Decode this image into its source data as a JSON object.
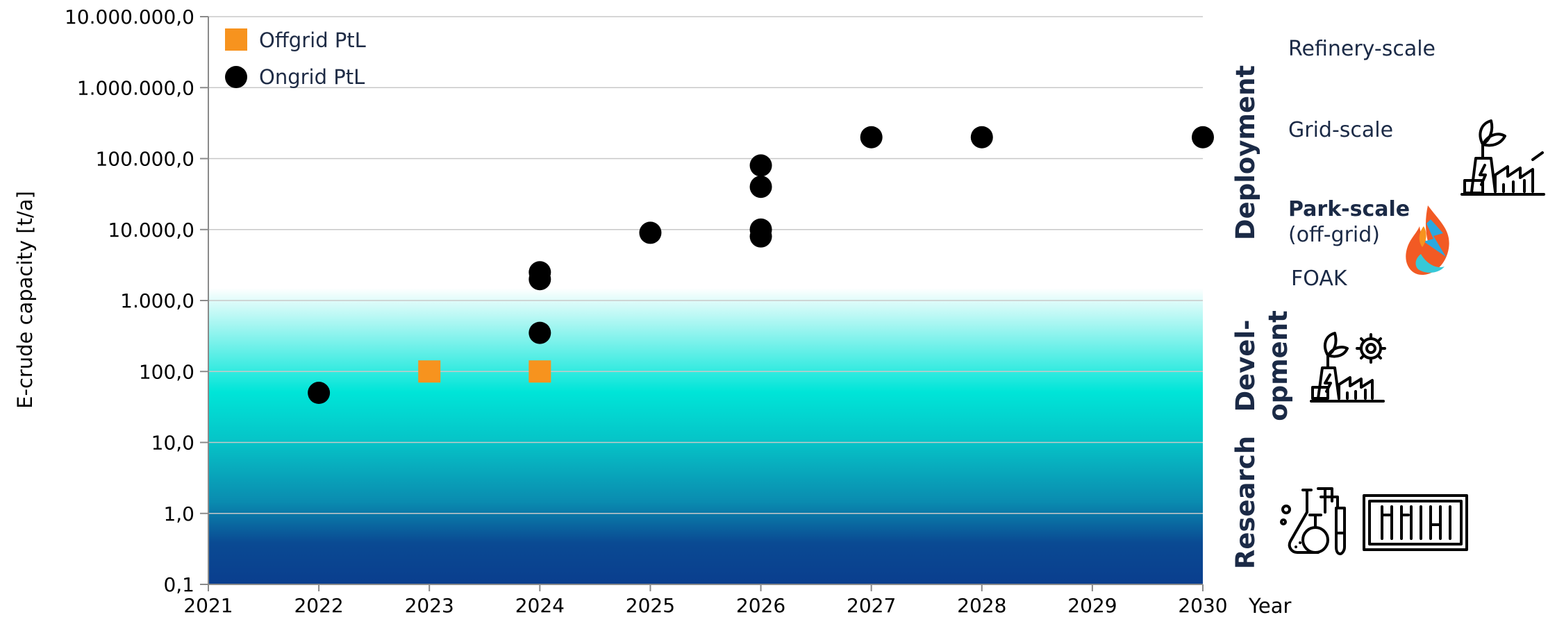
{
  "chart_data": {
    "type": "scatter",
    "xlabel": "Year",
    "ylabel": "E-crude capacity [t/a]",
    "yscale": "log",
    "xlim": [
      2021,
      2030
    ],
    "ylim": [
      0.1,
      10000000
    ],
    "x_ticks": [
      "2021",
      "2022",
      "2023",
      "2024",
      "2025",
      "2026",
      "2027",
      "2028",
      "2029",
      "2030"
    ],
    "y_ticks": [
      {
        "value": 0.1,
        "label": "0,1"
      },
      {
        "value": 1,
        "label": "1,0"
      },
      {
        "value": 10,
        "label": "10,0"
      },
      {
        "value": 100,
        "label": "100,0"
      },
      {
        "value": 1000,
        "label": "1.000,0"
      },
      {
        "value": 10000,
        "label": "10.000,0"
      },
      {
        "value": 100000,
        "label": "100.000,0"
      },
      {
        "value": 1000000,
        "label": "1.000.000,0"
      },
      {
        "value": 10000000,
        "label": "10.000.000,0"
      }
    ],
    "grid": "horizontal",
    "legend": "top-left",
    "series": [
      {
        "name": "Offgrid PtL",
        "marker": "square",
        "color": "#f7931e",
        "points": [
          {
            "x": 2023,
            "y": 100
          },
          {
            "x": 2024,
            "y": 100
          }
        ]
      },
      {
        "name": "Ongrid PtL",
        "marker": "circle",
        "color": "#000000",
        "points": [
          {
            "x": 2022,
            "y": 50
          },
          {
            "x": 2024,
            "y": 350
          },
          {
            "x": 2024,
            "y": 2000
          },
          {
            "x": 2024,
            "y": 2500
          },
          {
            "x": 2025,
            "y": 9000
          },
          {
            "x": 2026,
            "y": 8000
          },
          {
            "x": 2026,
            "y": 10000
          },
          {
            "x": 2026,
            "y": 40000
          },
          {
            "x": 2026,
            "y": 80000
          },
          {
            "x": 2027,
            "y": 200000
          },
          {
            "x": 2028,
            "y": 200000
          },
          {
            "x": 2030,
            "y": 200000
          }
        ]
      }
    ],
    "background_band": {
      "from": 0.1,
      "to": 1000
    },
    "stages": [
      "Deployment",
      "Devel-",
      "opment",
      "Research"
    ],
    "scale_labels": {
      "refinery": "Refinery-scale",
      "grid": "Grid-scale",
      "park": "Park-scale",
      "park_note": "(off-grid)",
      "foak": "FOAK"
    }
  },
  "colors": {
    "band_top": "#ffffff",
    "band_cyan": "#00e5d8",
    "band_mid": "#0a9bb5",
    "band_bottom": "#0a3e8e",
    "grid": "#c8c8c8",
    "label_text": "#1b2a46"
  },
  "icons": [
    "factory-leaf-icon",
    "flame-bolt-logo",
    "factory-gear-icon",
    "lab-flask-icon",
    "container-icon"
  ]
}
